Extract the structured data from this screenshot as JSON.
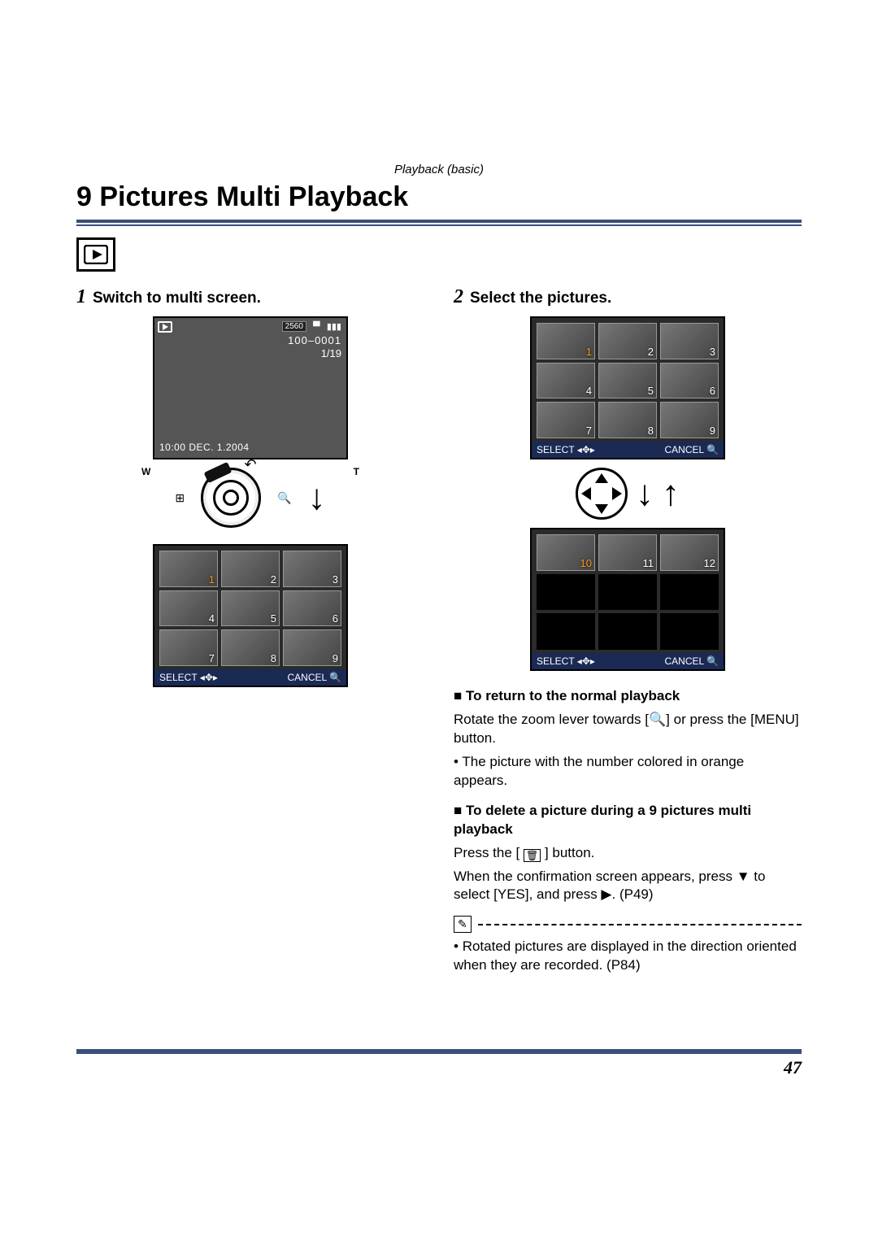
{
  "header": {
    "section_label": "Playback (basic)",
    "title": "9 Pictures Multi Playback",
    "rule_color": "#3a4f7a"
  },
  "page_number": "47",
  "step1": {
    "number": "1",
    "title": "Switch to multi screen.",
    "single_screen": {
      "resolution_tag": "2560",
      "file_no": "100–0001",
      "index": "1/19",
      "datetime": "10:00  DEC.  1.2004"
    },
    "zoom": {
      "left_label": "W",
      "right_label": "T",
      "left_icon": "⊞",
      "right_icon": "🔍"
    },
    "grid_screen": {
      "thumbs": [
        1,
        2,
        3,
        4,
        5,
        6,
        7,
        8,
        9
      ],
      "selected": 1,
      "footer_select": "SELECT",
      "footer_cancel": "CANCEL"
    }
  },
  "step2": {
    "number": "2",
    "title": "Select the pictures.",
    "grid_a": {
      "thumbs": [
        1,
        2,
        3,
        4,
        5,
        6,
        7,
        8,
        9
      ],
      "selected": 1,
      "footer_select": "SELECT",
      "footer_cancel": "CANCEL"
    },
    "grid_b": {
      "thumbs": [
        10,
        11,
        12
      ],
      "selected": 10,
      "footer_select": "SELECT",
      "footer_cancel": "CANCEL"
    },
    "text": {
      "return_head": "To return to the normal playback",
      "return_body": "Rotate the zoom lever towards [🔍] or press the [MENU] button.",
      "return_bullet": "The picture with the number colored in orange appears.",
      "delete_head": "To delete a picture during a 9 pictures multi playback",
      "delete_body1": "Press the [ 🗑 ] button.",
      "delete_body2": "When the confirmation screen appears, press ▼ to select [YES], and press ▶. (P49)",
      "note_icon": "✎",
      "note_bullet": "Rotated pictures are displayed in the direction oriented when they are recorded. (P84)"
    }
  },
  "colors": {
    "lcd_footer": "#1a2a55",
    "highlight": "#ff9a1a"
  }
}
